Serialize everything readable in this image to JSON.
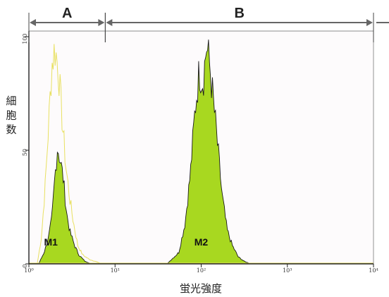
{
  "chart_data": {
    "type": "area",
    "xscale": "log",
    "xlim": [
      1,
      10000
    ],
    "ylim": [
      0,
      100
    ],
    "xlabel": "蛍光強度",
    "ylabel": "細胞数",
    "xticks": [
      {
        "value": 1,
        "label": "10⁰"
      },
      {
        "value": 10,
        "label": "10¹"
      },
      {
        "value": 100,
        "label": "10²"
      },
      {
        "value": 1000,
        "label": "10³"
      },
      {
        "value": 10000,
        "label": "10⁴"
      }
    ],
    "yticks": [
      {
        "value": 0,
        "label": "0"
      },
      {
        "value": 50,
        "label": "50"
      },
      {
        "value": 100,
        "label": "100"
      }
    ],
    "regions": [
      {
        "label": "A",
        "from": 1,
        "to": 7.7
      },
      {
        "label": "B",
        "from": 7.7,
        "to": 10000
      }
    ],
    "series": [
      {
        "name": "",
        "style": "outline",
        "color": "#e8e060",
        "x": [
          1.25,
          1.4,
          1.55,
          1.7,
          1.85,
          2.0,
          2.2,
          2.45,
          2.7,
          3.0,
          3.3,
          3.7,
          4.2,
          5.0,
          6.0,
          7.0
        ],
        "y": [
          0,
          12,
          35,
          62,
          88,
          95,
          86,
          62,
          42,
          28,
          18,
          8,
          4,
          2,
          1,
          0
        ]
      },
      {
        "name": "",
        "style": "filled",
        "color": "#a8d820",
        "x": [
          1.3,
          1.5,
          1.7,
          1.85,
          2.0,
          2.15,
          2.3,
          2.5,
          2.75,
          3.0,
          3.4,
          3.8,
          4.5,
          5.5
        ],
        "y": [
          0,
          5,
          12,
          20,
          38,
          52,
          46,
          38,
          22,
          14,
          8,
          4,
          1,
          0
        ],
        "peak_label": "M1",
        "peak_label_x": 1.8,
        "peak_label_y": 8
      },
      {
        "name": "",
        "style": "filled",
        "color": "#a8d820",
        "x": [
          40,
          55,
          65,
          75,
          85,
          95,
          105,
          115,
          125,
          140,
          155,
          175,
          200,
          230,
          270,
          320,
          380
        ],
        "y": [
          0,
          5,
          18,
          40,
          68,
          85,
          80,
          96,
          88,
          70,
          52,
          30,
          15,
          8,
          3,
          1,
          0
        ],
        "peak_label": "M2",
        "peak_label_x": 100,
        "peak_label_y": 8
      }
    ]
  }
}
